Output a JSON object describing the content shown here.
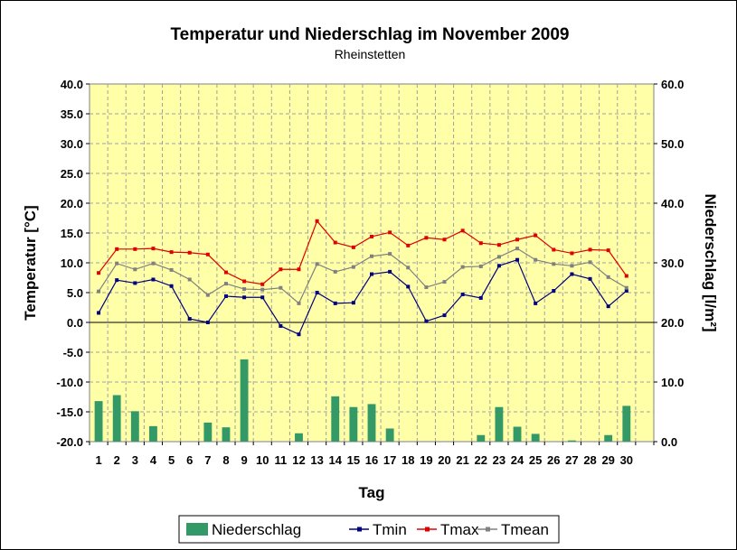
{
  "chart_data": {
    "type": "bar+line",
    "title": "Temperatur und Niederschlag im November 2009",
    "subtitle": "Rheinstetten",
    "xlabel": "Tag",
    "ylabel_left": "Temperatur [°C]",
    "ylabel_right": "Niederschlag [l/m²]",
    "ylim_left": [
      -20,
      40
    ],
    "ylim_right": [
      0,
      60
    ],
    "y_ticks_left": [
      "40.0",
      "35.0",
      "30.0",
      "25.0",
      "20.0",
      "15.0",
      "10.0",
      "5.0",
      "0.0",
      "-5.0",
      "-10.0",
      "-15.0",
      "-20.0"
    ],
    "y_ticks_right": [
      "60.0",
      "50.0",
      "40.0",
      "30.0",
      "20.0",
      "10.0",
      "0.0"
    ],
    "categories": [
      "1",
      "2",
      "3",
      "4",
      "5",
      "6",
      "7",
      "8",
      "9",
      "10",
      "11",
      "12",
      "13",
      "14",
      "15",
      "16",
      "17",
      "18",
      "19",
      "20",
      "21",
      "22",
      "23",
      "24",
      "25",
      "26",
      "27",
      "28",
      "29",
      "30"
    ],
    "x_slots": 31,
    "grid": true,
    "legend_placement": "bottom",
    "colors": {
      "plot_bg": "#ffffa8",
      "niederschlag": "#339966",
      "tmin": "#000080",
      "tmax": "#e00000",
      "tmean": "#808080",
      "grid": "#a0a0a0"
    },
    "series": [
      {
        "name": "Niederschlag",
        "kind": "bar",
        "axis": "right",
        "values": [
          6.8,
          7.8,
          5.1,
          2.6,
          0,
          0,
          3.2,
          2.4,
          13.8,
          0,
          0,
          1.4,
          0,
          7.6,
          5.8,
          6.3,
          2.2,
          0,
          0,
          0,
          0,
          1.1,
          5.8,
          2.5,
          1.3,
          0,
          0.2,
          0,
          1.1,
          6.0
        ]
      },
      {
        "name": "Tmin",
        "kind": "line",
        "axis": "left",
        "values": [
          1.6,
          7.1,
          6.6,
          7.2,
          6.1,
          0.6,
          0.0,
          4.4,
          4.2,
          4.2,
          -0.6,
          -2.0,
          5.0,
          3.2,
          3.3,
          8.1,
          8.5,
          6.0,
          0.2,
          1.2,
          4.7,
          4.1,
          9.5,
          10.5,
          3.2,
          5.3,
          8.1,
          7.3,
          2.7,
          5.3
        ]
      },
      {
        "name": "Tmax",
        "kind": "line",
        "axis": "left",
        "values": [
          8.3,
          12.3,
          12.3,
          12.4,
          11.8,
          11.7,
          11.4,
          8.4,
          6.9,
          6.4,
          8.9,
          8.9,
          17.0,
          13.4,
          12.6,
          14.4,
          15.1,
          12.9,
          14.2,
          13.9,
          15.4,
          13.3,
          13.0,
          13.9,
          14.6,
          12.2,
          11.6,
          12.2,
          12.1,
          7.8
        ]
      },
      {
        "name": "Tmean",
        "kind": "line",
        "axis": "left",
        "values": [
          5.2,
          9.9,
          8.9,
          9.9,
          8.8,
          7.2,
          4.6,
          6.5,
          5.6,
          5.5,
          5.8,
          3.2,
          9.8,
          8.5,
          9.3,
          11.1,
          11.5,
          9.2,
          5.9,
          6.8,
          9.3,
          9.4,
          11.0,
          12.4,
          10.5,
          9.8,
          9.5,
          10.1,
          7.6,
          5.8
        ]
      }
    ]
  }
}
